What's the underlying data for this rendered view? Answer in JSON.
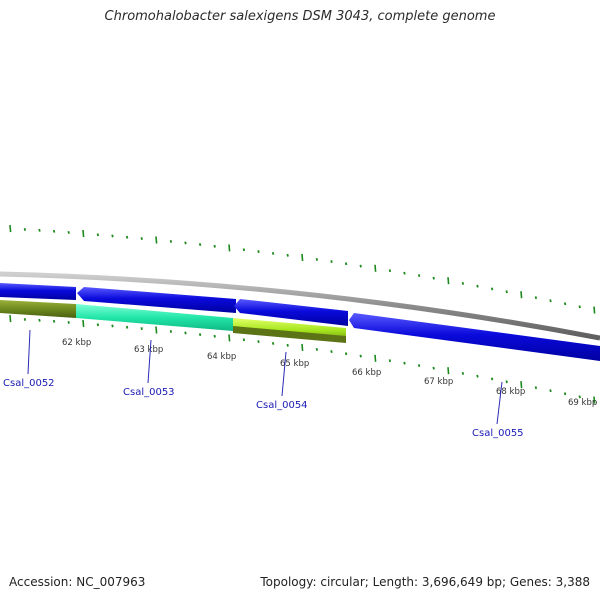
{
  "header": {
    "title": "Chromohalobacter salexigens DSM 3043, complete genome"
  },
  "footer": {
    "accession": "Accession: NC_007963",
    "topology": "Topology: circular; Length: 3,696,649 bp; Genes: 3,388"
  },
  "genome_map": {
    "scale_labels": [
      "62 kbp",
      "63 kbp",
      "64 kbp",
      "65 kbp",
      "66 kbp",
      "67 kbp",
      "68 kbp",
      "69 kbp"
    ],
    "genes": [
      {
        "label": "Csal_0052",
        "strand": "forward"
      },
      {
        "label": "Csal_0053",
        "strand": "reverse"
      },
      {
        "label": "Csal_0054",
        "strand": "reverse"
      },
      {
        "label": "Csal_0055",
        "strand": "forward"
      }
    ],
    "colors": {
      "backbone": "#8c8c8c",
      "gene_arrow": "#0a0adc",
      "feature_olive": "#6f8a1e",
      "feature_teal": "#22e6a8",
      "feature_lime": "#a6e61e",
      "tick": "#1d8a1d",
      "label_line": "#2a2ab4"
    }
  }
}
